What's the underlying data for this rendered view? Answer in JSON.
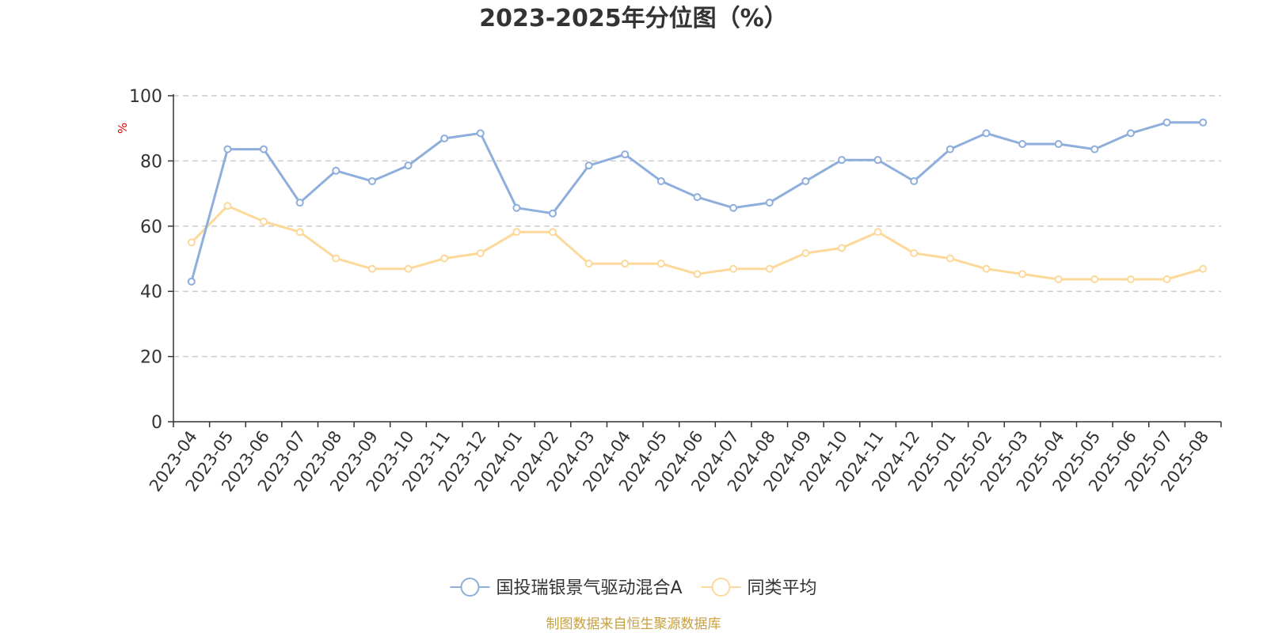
{
  "chart_data": {
    "type": "line",
    "title": "2023-2025年分位图（%）",
    "ylabel": "%",
    "ylim": [
      0,
      100
    ],
    "yticks": [
      0,
      20,
      40,
      60,
      80,
      100
    ],
    "grid": true,
    "legend_position": "bottom",
    "categories": [
      "2023-04",
      "2023-05",
      "2023-06",
      "2023-07",
      "2023-08",
      "2023-09",
      "2023-10",
      "2023-11",
      "2023-12",
      "2024-01",
      "2024-02",
      "2024-03",
      "2024-04",
      "2024-05",
      "2024-06",
      "2024-07",
      "2024-08",
      "2024-09",
      "2024-10",
      "2024-11",
      "2024-12",
      "2025-01",
      "2025-02",
      "2025-03",
      "2025-04",
      "2025-05",
      "2025-06",
      "2025-07",
      "2025-08"
    ],
    "series": [
      {
        "name": "国投瑞银景气驱动混合A",
        "color": "#8eaedb",
        "values": [
          43,
          83.6,
          83.6,
          67.2,
          77,
          73.8,
          78.6,
          86.9,
          88.5,
          65.6,
          63.9,
          78.6,
          82,
          73.8,
          68.9,
          65.6,
          67.2,
          73.8,
          80.3,
          80.3,
          73.8,
          83.6,
          88.5,
          85.2,
          85.2,
          83.6,
          88.5,
          91.8,
          91.8
        ]
      },
      {
        "name": "同类平均",
        "color": "#fcd99a",
        "values": [
          55,
          66.2,
          61.4,
          58.2,
          50.1,
          46.9,
          46.9,
          50.1,
          51.7,
          58.2,
          58.2,
          48.5,
          48.5,
          48.5,
          45.3,
          46.9,
          46.9,
          51.7,
          53.3,
          58.2,
          51.7,
          50.1,
          46.9,
          45.3,
          43.7,
          43.7,
          43.7,
          43.7,
          46.9
        ]
      }
    ]
  },
  "source_note": "制图数据来自恒生聚源数据库"
}
